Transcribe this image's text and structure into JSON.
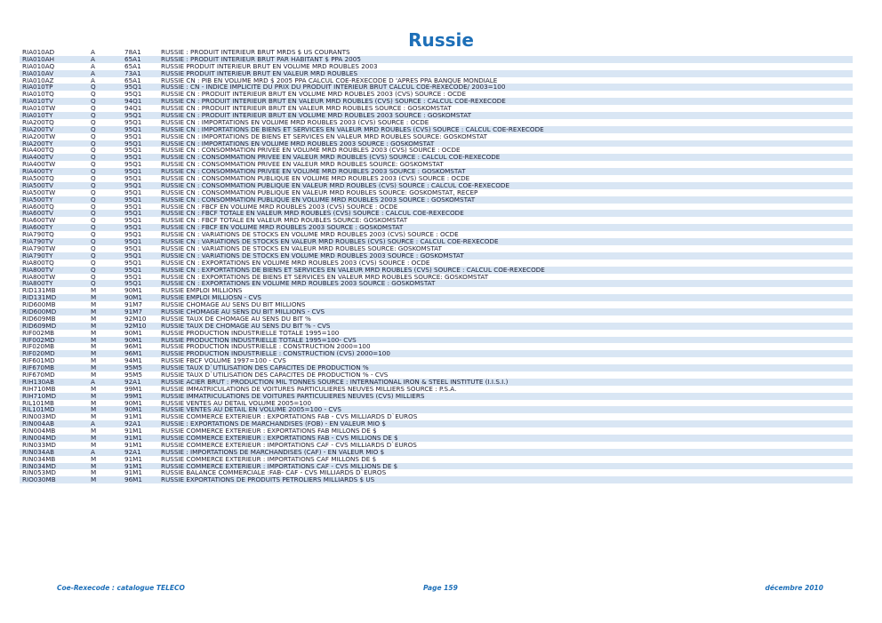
{
  "title": "Russie",
  "rows": [
    {
      "code": "RIA010AD",
      "freq": "A",
      "src": "78A1",
      "desc": "RUSSIE : PRODUIT INTERIEUR BRUT  MRDS $ US COURANTS"
    },
    {
      "code": "RIA010AH",
      "freq": "A",
      "src": "65A1",
      "desc": "RUSSIE : PRODUIT INTERIEUR BRUT PAR  HABITANT   $ PPA 2005"
    },
    {
      "code": "RIA010AQ",
      "freq": "A",
      "src": "65A1",
      "desc": "RUSSIE  PRODUIT INTERIEUR BRUT EN VOLUME  MRD ROUBLES 2003"
    },
    {
      "code": "RIA010AV",
      "freq": "A",
      "src": "73A1",
      "desc": "RUSSIE  PRODUIT INTERIEUR BRUT EN VALEUR  MRD ROUBLES"
    },
    {
      "code": "RIA010AZ",
      "freq": "A",
      "src": "65A1",
      "desc": "RUSSIE  CN : PIB EN VOLUME  MRD $ 2005 PPA  CALCUL COE-REXECODE D 'APRES PPA BANQUE MONDIALE"
    },
    {
      "code": "RIA010TP",
      "freq": "Q",
      "src": "95Q1",
      "desc": "RUSSIE : CN - INDICE IMPLICITE DU PRIX DU PRODUIT INTERIEUR BRUT  CALCUL COE-REXECODE/ 2003=100"
    },
    {
      "code": "RIA010TQ",
      "freq": "Q",
      "src": "95Q1",
      "desc": "RUSSIE CN : PRODUIT INTERIEUR BRUT EN VOLUME MRD ROUBLES  2003 (CVS) SOURCE : OCDE"
    },
    {
      "code": "RIA010TV",
      "freq": "Q",
      "src": "94Q1",
      "desc": "RUSSIE CN : PRODUIT INTERIEUR BRUT EN VALEUR MRD ROUBLES (CVS) SOURCE : CALCUL COE-REXECODE"
    },
    {
      "code": "RIA010TW",
      "freq": "Q",
      "src": "94Q1",
      "desc": "RUSSIE CN : PRODUIT INTERIEUR BRUT EN VALEUR  MRD ROUBLES  SOURCE : GOSKOMSTAT"
    },
    {
      "code": "RIA010TY",
      "freq": "Q",
      "src": "95Q1",
      "desc": "RUSSIE CN : PRODUIT INTERIEUR BRUT EN VOLUME MRD ROUBLES 2003 SOURCE : GOSKOMSTAT"
    },
    {
      "code": "RIA200TQ",
      "freq": "Q",
      "src": "95Q1",
      "desc": "RUSSIE CN : IMPORTATIONS EN VOLUME MRD ROUBLES  2003 (CVS) SOURCE : OCDE"
    },
    {
      "code": "RIA200TV",
      "freq": "Q",
      "src": "95Q1",
      "desc": "RUSSIE  CN : IMPORTATIONS DE BIENS ET SERVICES EN VALEUR   MRD ROUBLES (CVS) SOURCE : CALCUL COE-REXECODE"
    },
    {
      "code": "RIA200TW",
      "freq": "Q",
      "src": "95Q1",
      "desc": "RUSSIE  CN : IMPORTATIONS DE BIENS ET SERVICES EN VALEUR   MRD ROUBLES  SOURCE: GOSKOMSTAT"
    },
    {
      "code": "RIA200TY",
      "freq": "Q",
      "src": "95Q1",
      "desc": "RUSSIE  CN : IMPORTATIONS EN VOLUME MRD ROUBLES  2003  SOURCE : GOSKOMSTAT"
    },
    {
      "code": "RIA400TQ",
      "freq": "Q",
      "src": "95Q1",
      "desc": "RUSSIE CN : CONSOMMATION PRIVEE EN VOLUME  MRD ROUBLES 2003 (CVS) SOURCE : OCDE"
    },
    {
      "code": "RIA400TV",
      "freq": "Q",
      "src": "95Q1",
      "desc": "RUSSIE  CN :  CONSOMMATION PRIVEE EN VALEUR   MRD ROUBLES (CVS) SOURCE : CALCUL COE-REXECODE"
    },
    {
      "code": "RIA400TW",
      "freq": "Q",
      "src": "95Q1",
      "desc": "RUSSIE  CN :  CONSOMMATION PRIVEE EN VALEUR   MRD ROUBLES SOURCE: GOSKOMSTAT"
    },
    {
      "code": "RIA400TY",
      "freq": "Q",
      "src": "95Q1",
      "desc": "RUSSIE CN : CONSOMMATION PRIVEE EN VOLUME  MRD ROUBLES 2003   SOURCE : GOSKOMSTAT"
    },
    {
      "code": "RIA500TQ",
      "freq": "Q",
      "src": "95Q1",
      "desc": "RUSSIE CN : CONSOMMATION PUBLIQUE EN VOLUME   MRD ROUBLES 2003 (CVS) SOURCE : OCDE"
    },
    {
      "code": "RIA500TV",
      "freq": "Q",
      "src": "95Q1",
      "desc": "RUSSIE  CN :  CONSOMMATION PUBLIQUE EN VALEUR   MRD ROUBLES (CVS) SOURCE : CALCUL COE-REXECODE"
    },
    {
      "code": "RIA500TW",
      "freq": "Q",
      "src": "95Q1",
      "desc": "RUSSIE  CN :  CONSOMMATION PUBLIQUE EN VALEUR   MRD ROUBLES SOURCE: GOSKOMSTAT, RECEP"
    },
    {
      "code": "RIA500TY",
      "freq": "Q",
      "src": "95Q1",
      "desc": "RUSSIE CN : CONSOMMATION PUBLIQUE EN VOLUME   MRD ROUBLES 2003   SOURCE : GOSKOMSTAT"
    },
    {
      "code": "RIA600TQ",
      "freq": "Q",
      "src": "95Q1",
      "desc": "RUSSIE CN : FBCF EN VOLUME  MRD ROUBLES 2003 (CVS) SOURCE : OCDE"
    },
    {
      "code": "RIA600TV",
      "freq": "Q",
      "src": "95Q1",
      "desc": "RUSSIE  CN :  FBCF TOTALE EN VALEUR   MRD ROUBLES (CVS) SOURCE : CALCUL COE-REXECODE"
    },
    {
      "code": "RIA600TW",
      "freq": "Q",
      "src": "95Q1",
      "desc": "RUSSIE  CN :  FBCF TOTALE EN VALEUR   MRD ROUBLES  SOURCE: GOSKOMSTAT"
    },
    {
      "code": "RIA600TY",
      "freq": "Q",
      "src": "95Q1",
      "desc": "RUSSIE CN : FBCF EN VOLUME  MRD ROUBLES 2003  SOURCE : GOSKOMSTAT"
    },
    {
      "code": "RIA790TQ",
      "freq": "Q",
      "src": "95Q1",
      "desc": "RUSSIE CN : VARIATIONS DE STOCKS EN VOLUME MRD ROUBLES 2003 (CVS) SOURCE : OCDE"
    },
    {
      "code": "RIA790TV",
      "freq": "Q",
      "src": "95Q1",
      "desc": "RUSSIE  CN :  VARIATIONS DE STOCKS EN VALEUR   MRD ROUBLES (CVS) SOURCE : CALCUL COE-REXECODE"
    },
    {
      "code": "RIA790TW",
      "freq": "Q",
      "src": "95Q1",
      "desc": "RUSSIE  CN :  VARIATIONS DE STOCKS EN VALEUR   MRD ROUBLES SOURCE: GOSKOMSTAT"
    },
    {
      "code": "RIA790TY",
      "freq": "Q",
      "src": "95Q1",
      "desc": "RUSSIE CN : VARIATIONS DE STOCKS EN VOLUME MRD ROUBLES 2003  SOURCE : GOSKOMSTAT"
    },
    {
      "code": "RIA800TQ",
      "freq": "Q",
      "src": "95Q1",
      "desc": "RUSSIE CN : EXPORTATIONS EN VOLUME MRD ROUBLES 2003 (CVS) SOURCE : OCDE"
    },
    {
      "code": "RIA800TV",
      "freq": "Q",
      "src": "95Q1",
      "desc": "RUSSIE  CN : EXPORTATIONS DE BIENS ET SERVICES EN VALEUR   MRD ROUBLES (CVS) SOURCE : CALCUL COE-REXECODE"
    },
    {
      "code": "RIA800TW",
      "freq": "Q",
      "src": "95Q1",
      "desc": "RUSSIE  CN : EXPORTATIONS DE BIENS ET SERVICES EN VALEUR  MRD ROUBLES SOURCE: GOSKOMSTAT"
    },
    {
      "code": "RIA800TY",
      "freq": "Q",
      "src": "95Q1",
      "desc": "RUSSIE CN : EXPORTATIONS EN VOLUME   MRD ROUBLES 2003  SOURCE : GOSKOMSTAT"
    },
    {
      "code": "RID131MB",
      "freq": "M",
      "src": "90M1",
      "desc": "RUSSIE   EMPLOI   MILLIONS"
    },
    {
      "code": "RID131MD",
      "freq": "M",
      "src": "90M1",
      "desc": "RUSSIE   EMPLOI   MILLIOSN - CVS"
    },
    {
      "code": "RID600MB",
      "freq": "M",
      "src": "91M7",
      "desc": "RUSSIE   CHOMAGE AU SENS DU BIT   MILLIONS"
    },
    {
      "code": "RID600MD",
      "freq": "M",
      "src": "91M7",
      "desc": "RUSSIE   CHOMAGE AU SENS DU BIT   MILLIONS - CVS"
    },
    {
      "code": "RID609MB",
      "freq": "M",
      "src": "92M10",
      "desc": "RUSSIE   TAUX DE CHOMAGE AU SENS DU BIT   %"
    },
    {
      "code": "RID609MD",
      "freq": "M",
      "src": "92M10",
      "desc": "RUSSIE   TAUX DE CHOMAGE AU SENS DU BIT   % - CVS"
    },
    {
      "code": "RIF002MB",
      "freq": "M",
      "src": "90M1",
      "desc": "RUSSIE   PRODUCTION INDUSTRIELLE TOTALE   1995=100"
    },
    {
      "code": "RIF002MD",
      "freq": "M",
      "src": "90M1",
      "desc": "RUSSIE   PRODUCTION INDUSTRIELLE TOTALE   1995=100- CVS"
    },
    {
      "code": "RIF020MB",
      "freq": "M",
      "src": "96M1",
      "desc": "RUSSIE  PRODUCTION INDUSTRIELLE : CONSTRUCTION 2000=100"
    },
    {
      "code": "RIF020MD",
      "freq": "M",
      "src": "96M1",
      "desc": "RUSSIE  PRODUCTION INDUSTRIELLE : CONSTRUCTION (CVS) 2000=100"
    },
    {
      "code": "RIF601MD",
      "freq": "M",
      "src": "94M1",
      "desc": "RUSSIE   FBCF   VOLUME   1997=100 - CVS"
    },
    {
      "code": "RIF670MB",
      "freq": "M",
      "src": "95M5",
      "desc": "RUSSIE   TAUX D`UTILISATION DES CAPACITES DE PRODUCTION   %"
    },
    {
      "code": "RIF670MD",
      "freq": "M",
      "src": "95M5",
      "desc": "RUSSIE   TAUX D`UTILISATION DES CAPACITES DE PRODUCTION   % - CVS"
    },
    {
      "code": "RIH130AB",
      "freq": "A",
      "src": "92A1",
      "desc": "RUSSIE  ACIER BRUT : PRODUCTION  MIL TONNES SOURCE : INTERNATIONAL IRON & STEEL INSTITUTE (I.I.S.I.)"
    },
    {
      "code": "RIH710MB",
      "freq": "M",
      "src": "99M1",
      "desc": "RUSSIE   IMMATRICULATIONS DE VOITURES PARTICULIERES NEUVES MILLIERS SOURCE : P.S.A."
    },
    {
      "code": "RIH710MD",
      "freq": "M",
      "src": "99M1",
      "desc": "RUSSIE   IMMATRICULATIONS DE VOITURES PARTICULIERES NEUVES (CVS) MILLIERS"
    },
    {
      "code": "RIL101MB",
      "freq": "M",
      "src": "90M1",
      "desc": "RUSSIE   VENTES AU DETAIL   VOLUME   2005=100"
    },
    {
      "code": "RIL101MD",
      "freq": "M",
      "src": "90M1",
      "desc": "RUSSIE   VENTES AU DETAIL   EN VOLUME   2005=100 - CVS"
    },
    {
      "code": "RIN003MD",
      "freq": "M",
      "src": "91M1",
      "desc": "RUSSIE  COMMERCE EXTERIEUR : EXPORTATIONS FAB - CVS  MILLIARDS D`EUROS"
    },
    {
      "code": "RIN004AB",
      "freq": "A",
      "src": "92A1",
      "desc": "RUSSIE :   EXPORTATIONS DE MARCHANDISES (FOB) - EN VALEUR   MIO $"
    },
    {
      "code": "RIN004MB",
      "freq": "M",
      "src": "91M1",
      "desc": "RUSSIE  COMMERCE EXTERIEUR : EXPORTATIONS FAB  MILLONS DE $"
    },
    {
      "code": "RIN004MD",
      "freq": "M",
      "src": "91M1",
      "desc": "RUSSIE  COMMERCE EXTERIEUR : EXPORTATIONS FAB - CVS  MILLIONS DE $"
    },
    {
      "code": "RIN033MD",
      "freq": "M",
      "src": "91M1",
      "desc": "RUSSIE  COMMERCE EXTERIEUR : IMPORTATIONS CAF - CVS  MILLIARDS D`EUROS"
    },
    {
      "code": "RIN034AB",
      "freq": "A",
      "src": "92A1",
      "desc": "RUSSIE :   IMPORTATIONS DE MARCHANDISES (CAF) - EN VALEUR   MIO $"
    },
    {
      "code": "RIN034MB",
      "freq": "M",
      "src": "91M1",
      "desc": "RUSSIE  COMMERCE EXTERIEUR : IMPORTATIONS CAF  MILLONS DE $"
    },
    {
      "code": "RIN034MD",
      "freq": "M",
      "src": "91M1",
      "desc": "RUSSIE  COMMERCE EXTERIEUR : IMPORTATIONS CAF - CVS  MILLIONS DE $"
    },
    {
      "code": "RIN053MD",
      "freq": "M",
      "src": "91M1",
      "desc": "RUSSIE  BALANCE COMMERCIALE :FAB- CAF - CVS  MILLIARDS D`EUROS"
    },
    {
      "code": "RIO030MB",
      "freq": "M",
      "src": "96M1",
      "desc": "RUSSIE   EXPORTATIONS DE PRODUITS PETROLIERS   MILLIARDS $ US"
    }
  ],
  "footer": {
    "left": "Coe-Rexecode  : catalogue TELECO",
    "center": "Page 159",
    "right": "décembre 2010"
  }
}
